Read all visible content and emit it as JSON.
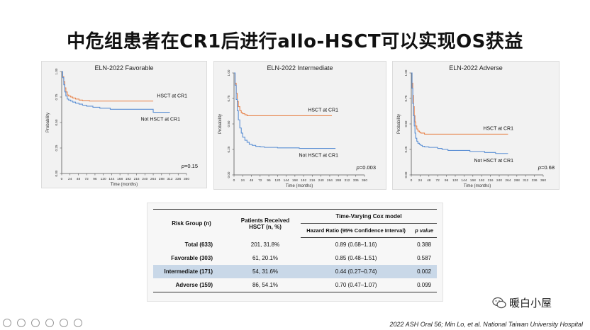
{
  "slide": {
    "title": "中危组患者在CR1后进行allo-HSCT可以实现OS获益",
    "footer": "2022 ASH Oral 56; Min Lo, et al. National Taiwan University Hospital",
    "watermark": "暖白小屋"
  },
  "chart_data": [
    {
      "type": "line",
      "title": "ELN-2022 Favorable",
      "xlabel": "Time (months)",
      "ylabel": "Probability",
      "xlim": [
        0,
        360
      ],
      "ylim": [
        0,
        1
      ],
      "xticks": [
        "0",
        "24",
        "48",
        "72",
        "96",
        "120",
        "144",
        "168",
        "192",
        "216",
        "240",
        "264",
        "288",
        "312",
        "336",
        "360"
      ],
      "yticks": [
        "0.00",
        "0.25",
        "0.50",
        "0.75",
        "1.00"
      ],
      "annotation": "p=0.15",
      "grid": false,
      "series": [
        {
          "name": "HSCT at CR1",
          "color": "#e8834a",
          "x": [
            0,
            3,
            6,
            9,
            12,
            16,
            20,
            26,
            32,
            40,
            50,
            60,
            80,
            100,
            140,
            180,
            220,
            264
          ],
          "y": [
            1.0,
            0.95,
            0.9,
            0.84,
            0.8,
            0.77,
            0.76,
            0.75,
            0.74,
            0.73,
            0.72,
            0.715,
            0.71,
            0.71,
            0.71,
            0.71,
            0.71,
            0.71
          ]
        },
        {
          "name": "Not HSCT at CR1",
          "color": "#5b8fd4",
          "x": [
            0,
            3,
            6,
            9,
            12,
            16,
            20,
            26,
            32,
            40,
            50,
            60,
            72,
            90,
            110,
            140,
            170,
            200,
            230,
            264,
            312
          ],
          "y": [
            1.0,
            0.94,
            0.87,
            0.8,
            0.76,
            0.73,
            0.72,
            0.71,
            0.7,
            0.69,
            0.68,
            0.67,
            0.66,
            0.65,
            0.64,
            0.63,
            0.63,
            0.63,
            0.63,
            0.6,
            0.6
          ]
        }
      ]
    },
    {
      "type": "line",
      "title": "ELN-2022 Intermediate",
      "xlabel": "Time (months)",
      "ylabel": "Probability",
      "xlim": [
        0,
        360
      ],
      "ylim": [
        0,
        1
      ],
      "xticks": [
        "0",
        "24",
        "48",
        "72",
        "96",
        "120",
        "144",
        "168",
        "192",
        "216",
        "240",
        "264",
        "288",
        "312",
        "336",
        "360"
      ],
      "yticks": [
        "0.00",
        "0.25",
        "0.50",
        "0.75",
        "1.00"
      ],
      "annotation": "p=0.003",
      "grid": false,
      "series": [
        {
          "name": "HSCT at CR1",
          "color": "#e8834a",
          "x": [
            0,
            3,
            6,
            9,
            12,
            16,
            20,
            24,
            30,
            36,
            48,
            60,
            80,
            100,
            140,
            180,
            220,
            270
          ],
          "y": [
            1.0,
            0.9,
            0.8,
            0.72,
            0.67,
            0.63,
            0.61,
            0.6,
            0.59,
            0.58,
            0.58,
            0.58,
            0.58,
            0.58,
            0.58,
            0.58,
            0.58,
            0.58
          ]
        },
        {
          "name": "Not HSCT at CR1",
          "color": "#5b8fd4",
          "x": [
            0,
            3,
            6,
            9,
            12,
            16,
            20,
            24,
            30,
            36,
            42,
            50,
            60,
            72,
            84,
            96,
            120,
            150,
            180,
            210,
            240,
            280
          ],
          "y": [
            1.0,
            0.88,
            0.74,
            0.63,
            0.54,
            0.46,
            0.41,
            0.37,
            0.34,
            0.32,
            0.3,
            0.29,
            0.28,
            0.275,
            0.27,
            0.27,
            0.265,
            0.265,
            0.26,
            0.26,
            0.26,
            0.26
          ]
        }
      ]
    },
    {
      "type": "line",
      "title": "ELN-2022 Adverse",
      "xlabel": "Time (months)",
      "ylabel": "Probability",
      "xlim": [
        0,
        360
      ],
      "ylim": [
        0,
        1
      ],
      "xticks": [
        "0",
        "24",
        "48",
        "72",
        "96",
        "120",
        "144",
        "168",
        "192",
        "216",
        "240",
        "264",
        "288",
        "312",
        "336",
        "360"
      ],
      "yticks": [
        "0.00",
        "0.25",
        "0.50",
        "0.75",
        "1.00"
      ],
      "annotation": "p=0.68",
      "grid": false,
      "series": [
        {
          "name": "HSCT at CR1",
          "color": "#e8834a",
          "x": [
            0,
            2,
            4,
            6,
            8,
            10,
            12,
            15,
            18,
            22,
            26,
            30,
            36,
            48,
            60,
            80,
            100,
            140,
            180,
            220,
            264
          ],
          "y": [
            1.0,
            0.9,
            0.78,
            0.67,
            0.58,
            0.52,
            0.48,
            0.45,
            0.43,
            0.42,
            0.41,
            0.41,
            0.4,
            0.4,
            0.4,
            0.4,
            0.4,
            0.4,
            0.4,
            0.4,
            0.4
          ]
        },
        {
          "name": "Not HSCT at CR1",
          "color": "#5b8fd4",
          "x": [
            0,
            2,
            4,
            6,
            8,
            10,
            12,
            15,
            18,
            22,
            26,
            30,
            36,
            48,
            60,
            72,
            84,
            100,
            130,
            160,
            200,
            230,
            264
          ],
          "y": [
            1.0,
            0.85,
            0.7,
            0.58,
            0.48,
            0.41,
            0.36,
            0.33,
            0.31,
            0.3,
            0.29,
            0.28,
            0.275,
            0.27,
            0.27,
            0.26,
            0.25,
            0.24,
            0.24,
            0.23,
            0.22,
            0.21,
            0.21
          ]
        }
      ]
    },
    {
      "type": "table",
      "headers": {
        "group": "Risk Group (n)",
        "hsct": "Patients Received HSCT (n, %)",
        "cox": "Time-Varying Cox model",
        "hr": "Hazard Ratio (95% Confidence Interval)",
        "p": "p value"
      },
      "rows": [
        {
          "group": "Total (633)",
          "hsct": "201, 31.8%",
          "hr": "0.89 (0.68–1.16)",
          "p": "0.388"
        },
        {
          "group": "Favorable (303)",
          "hsct": "61, 20.1%",
          "hr": "0.85 (0.48–1.51)",
          "p": "0.587"
        },
        {
          "group": "Intermediate (171)",
          "hsct": "54, 31.6%",
          "hr": "0.44 (0.27–0.74)",
          "p": "0.002"
        },
        {
          "group": "Adverse (159)",
          "hsct": "86, 54.1%",
          "hr": "0.70 (0.47–1.07)",
          "p": "0.099"
        }
      ]
    }
  ]
}
